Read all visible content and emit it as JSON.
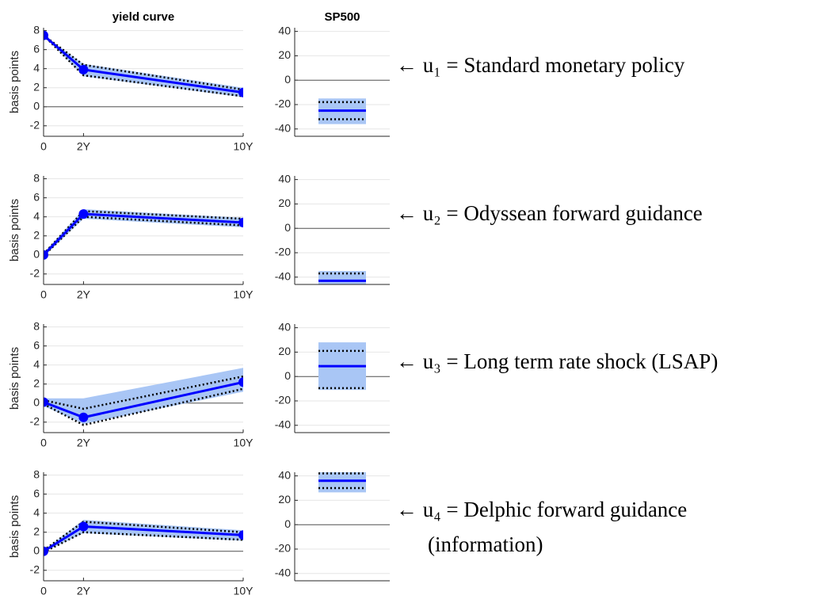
{
  "chart_data": [
    {
      "type": "line",
      "title": "yield curve",
      "ylabel": "basis points",
      "annotation": [
        "← u₁ = Standard monetary policy"
      ],
      "x": [
        0,
        2,
        10
      ],
      "xlim": [
        0,
        10
      ],
      "xticks": [
        0,
        {
          "value": 2,
          "label": "2Y"
        },
        {
          "value": 10,
          "label": "10Y"
        }
      ],
      "ylim": [
        -3.1,
        8.3
      ],
      "yticks": [
        -2,
        0,
        2,
        4,
        6,
        8
      ],
      "grid": true,
      "color": "#0000ff",
      "band_color": "#a9c6f5",
      "values": [
        7.5,
        3.9,
        1.5
      ],
      "band_low": [
        7.5,
        3.2,
        1.0
      ],
      "band_high": [
        7.5,
        4.5,
        2.0
      ],
      "ci_low": [
        7.5,
        3.3,
        1.1
      ],
      "ci_high": [
        7.5,
        4.4,
        1.8
      ]
    },
    {
      "type": "interval",
      "title": "SP500",
      "ylim": [
        -46,
        43
      ],
      "yticks": [
        -40,
        -20,
        0,
        20,
        40
      ],
      "grid": true,
      "color": "#0000ff",
      "band_color": "#a9c6f5",
      "value": -25,
      "band_low": -36,
      "band_high": -15,
      "ci_low": -32,
      "ci_high": -18
    },
    {
      "type": "line",
      "ylabel": "basis points",
      "annotation": [
        "← u₂ = Odyssean forward guidance"
      ],
      "x": [
        0,
        2,
        10
      ],
      "xlim": [
        0,
        10
      ],
      "xticks": [
        0,
        {
          "value": 2,
          "label": "2Y"
        },
        {
          "value": 10,
          "label": "10Y"
        }
      ],
      "ylim": [
        -3.1,
        8.3
      ],
      "yticks": [
        -2,
        0,
        2,
        4,
        6,
        8
      ],
      "grid": true,
      "color": "#0000ff",
      "band_color": "#a9c6f5",
      "values": [
        0,
        4.3,
        3.4
      ],
      "band_low": [
        -0.2,
        3.8,
        2.9
      ],
      "band_high": [
        0.2,
        4.8,
        3.9
      ],
      "ci_low": [
        -0.1,
        4.0,
        3.1
      ],
      "ci_high": [
        0.1,
        4.6,
        3.8
      ]
    },
    {
      "type": "interval",
      "ylim": [
        -46,
        43
      ],
      "yticks": [
        -40,
        -20,
        0,
        20,
        40
      ],
      "grid": true,
      "color": "#0000ff",
      "band_color": "#a9c6f5",
      "value": -43,
      "band_low": -48,
      "band_high": -35,
      "ci_low": -47,
      "ci_high": -37
    },
    {
      "type": "line",
      "ylabel": "basis points",
      "annotation": [
        "← u₃ = Long term rate shock (LSAP)"
      ],
      "x": [
        0,
        2,
        10
      ],
      "xlim": [
        0,
        10
      ],
      "xticks": [
        0,
        {
          "value": 2,
          "label": "2Y"
        },
        {
          "value": 10,
          "label": "10Y"
        }
      ],
      "ylim": [
        -3.1,
        8.3
      ],
      "yticks": [
        -2,
        0,
        2,
        4,
        6,
        8
      ],
      "grid": true,
      "color": "#0000ff",
      "band_color": "#a9c6f5",
      "values": [
        0.1,
        -1.5,
        2.2
      ],
      "band_low": [
        -0.3,
        -2.2,
        1.2
      ],
      "band_high": [
        0.5,
        0.5,
        3.7
      ],
      "ci_low": [
        -0.1,
        -2.3,
        1.5
      ],
      "ci_high": [
        0.3,
        -0.6,
        2.8
      ]
    },
    {
      "type": "interval",
      "ylim": [
        -46,
        43
      ],
      "yticks": [
        -40,
        -20,
        0,
        20,
        40
      ],
      "grid": true,
      "color": "#0000ff",
      "band_color": "#a9c6f5",
      "value": 8.5,
      "band_low": -11,
      "band_high": 28,
      "ci_low": -9.5,
      "ci_high": 21
    },
    {
      "type": "line",
      "ylabel": "basis points",
      "annotation": [
        "← u₄ = Delphic forward guidance",
        "(information)"
      ],
      "x": [
        0,
        2,
        10
      ],
      "xlim": [
        0,
        10
      ],
      "xticks": [
        0,
        {
          "value": 2,
          "label": "2Y"
        },
        {
          "value": 10,
          "label": "10Y"
        }
      ],
      "ylim": [
        -3.1,
        8.3
      ],
      "yticks": [
        -2,
        0,
        2,
        4,
        6,
        8
      ],
      "grid": true,
      "color": "#0000ff",
      "band_color": "#a9c6f5",
      "values": [
        0,
        2.6,
        1.7
      ],
      "band_low": [
        -0.1,
        1.9,
        1.1
      ],
      "band_high": [
        0.1,
        3.3,
        2.2
      ],
      "ci_low": [
        -0.1,
        2.0,
        1.2
      ],
      "ci_high": [
        0.1,
        3.1,
        2.0
      ]
    },
    {
      "type": "interval",
      "ylim": [
        -46,
        43
      ],
      "yticks": [
        -40,
        -20,
        0,
        20,
        40
      ],
      "grid": true,
      "color": "#0000ff",
      "band_color": "#a9c6f5",
      "value": 36,
      "band_low": 26.5,
      "band_high": 43.5,
      "ci_low": 30,
      "ci_high": 42
    }
  ]
}
